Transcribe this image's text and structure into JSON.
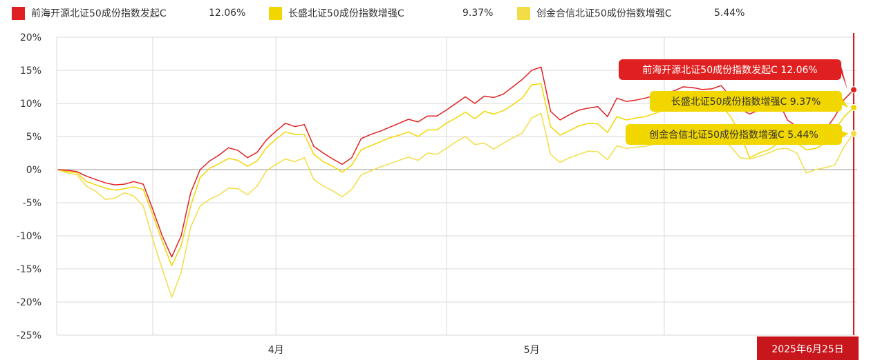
{
  "legend": [
    {
      "name": "前海开源北证50成份指数发起C",
      "value": "12.06%"
    },
    {
      "name": "长盛北证50成份指数增强C",
      "value": "9.37%"
    },
    {
      "name": "创金合信北证50成份指数增强C",
      "value": "5.44%"
    }
  ],
  "colors": {
    "series1": "#e02020",
    "series2": "#f2d600",
    "series3": "#f2dd47",
    "grid": "#d9d9d9",
    "zero": "#9a9a9a",
    "cursor": "#d61a1a",
    "date_bg": "#c8161d"
  },
  "cursor_date": "2025年6月25日",
  "callouts": [
    {
      "text": "前海开源北证50成份指数发起C 12.06%",
      "series": 0
    },
    {
      "text": "长盛北证50成份指数增强C 9.37%",
      "series": 1
    },
    {
      "text": "创金合信北证50成份指数增强C 5.44%",
      "series": 2
    }
  ],
  "chart_data": {
    "type": "line",
    "xlabels": [
      {
        "label": "4月",
        "index": 23
      },
      {
        "label": "5月",
        "index": 50
      }
    ],
    "ylim": [
      -25,
      20
    ],
    "yticks": [
      20,
      15,
      10,
      5,
      0,
      -5,
      -10,
      -15,
      -20,
      -25
    ],
    "ytick_labels": [
      "20%",
      "15%",
      "10%",
      "5%",
      "0%",
      "-5%",
      "-10%",
      "-15%",
      "-20%",
      "-25%"
    ],
    "series": [
      {
        "name": "前海开源北证50成份指数发起C",
        "values": [
          0,
          -0.1,
          -0.3,
          -1,
          -1.5,
          -2,
          -2.3,
          -2.2,
          -1.8,
          -2.2,
          -6,
          -10,
          -13.2,
          -10,
          -3.5,
          0,
          1.3,
          2.2,
          3.3,
          2.9,
          1.8,
          2.6,
          4.5,
          5.8,
          7,
          6.5,
          6.8,
          3.5,
          2.5,
          1.6,
          0.8,
          1.8,
          4.7,
          5.3,
          5.8,
          6.4,
          7,
          7.6,
          7.2,
          8.1,
          8.1,
          9,
          10,
          11,
          10,
          11.1,
          10.9,
          11.4,
          12.5,
          13.6,
          15,
          15.5,
          8.8,
          7.5,
          8.3,
          9,
          9.3,
          9.5,
          8,
          10.8,
          10.3,
          10.5,
          10.8,
          11.2,
          11.5,
          11.9,
          12.5,
          12.4,
          12.1,
          12.2,
          12.7,
          11,
          9.2,
          8.4,
          9,
          9.5,
          10.5,
          7.5,
          6.5,
          4,
          5,
          6,
          8,
          10.6,
          12.06
        ]
      },
      {
        "name": "长盛北证50成份指数增强C",
        "values": [
          0,
          -0.3,
          -0.5,
          -1.8,
          -2.3,
          -2.8,
          -3.1,
          -2.9,
          -2.6,
          -3,
          -6.8,
          -10.8,
          -14.5,
          -11.5,
          -5.5,
          -1.2,
          0.2,
          0.9,
          1.7,
          1.4,
          0.5,
          1.3,
          3.3,
          4.6,
          5.7,
          5.3,
          5.3,
          2.3,
          1.2,
          0.5,
          -0.4,
          0.7,
          3,
          3.6,
          4.2,
          4.8,
          5.2,
          5.7,
          5,
          6,
          6,
          7,
          7.8,
          8.7,
          7.7,
          8.8,
          8.4,
          8.9,
          9.8,
          10.8,
          12.8,
          13,
          6.5,
          5.2,
          5.9,
          6.6,
          7,
          6.9,
          5.6,
          8,
          7.5,
          7.8,
          8,
          8.5,
          9,
          9,
          9.7,
          9.5,
          9.5,
          9.4,
          9.8,
          8,
          5.5,
          1.8,
          2.5,
          3,
          4,
          4.5,
          4,
          3,
          3.2,
          4,
          6,
          8,
          9.37
        ]
      },
      {
        "name": "创金合信北证50成份指数增强C",
        "values": [
          0,
          -0.5,
          -0.8,
          -2.5,
          -3.3,
          -4.5,
          -4.3,
          -3.5,
          -4,
          -5.5,
          -10.5,
          -15,
          -19.3,
          -15.5,
          -8.7,
          -5.5,
          -4.5,
          -3.8,
          -2.8,
          -2.9,
          -3.8,
          -2.5,
          -0.2,
          0.8,
          1.6,
          1.2,
          1.8,
          -1.5,
          -2.5,
          -3.2,
          -4.1,
          -3,
          -0.8,
          -0.2,
          0.4,
          0.9,
          1.4,
          1.9,
          1.4,
          2.5,
          2.3,
          3.2,
          4.2,
          5,
          3.8,
          4,
          3.1,
          4,
          4.8,
          5.5,
          7.8,
          8.5,
          2.3,
          1.1,
          1.8,
          2.3,
          2.8,
          2.7,
          1.5,
          3.6,
          3.2,
          3.4,
          3.5,
          3.9,
          4.3,
          4.1,
          4.5,
          4.3,
          4.1,
          4.3,
          4.5,
          3.5,
          1.8,
          1.6,
          2,
          2.5,
          3.1,
          3.2,
          2.5,
          -0.5,
          0,
          0.3,
          0.7,
          3.5,
          5.44
        ]
      }
    ]
  }
}
